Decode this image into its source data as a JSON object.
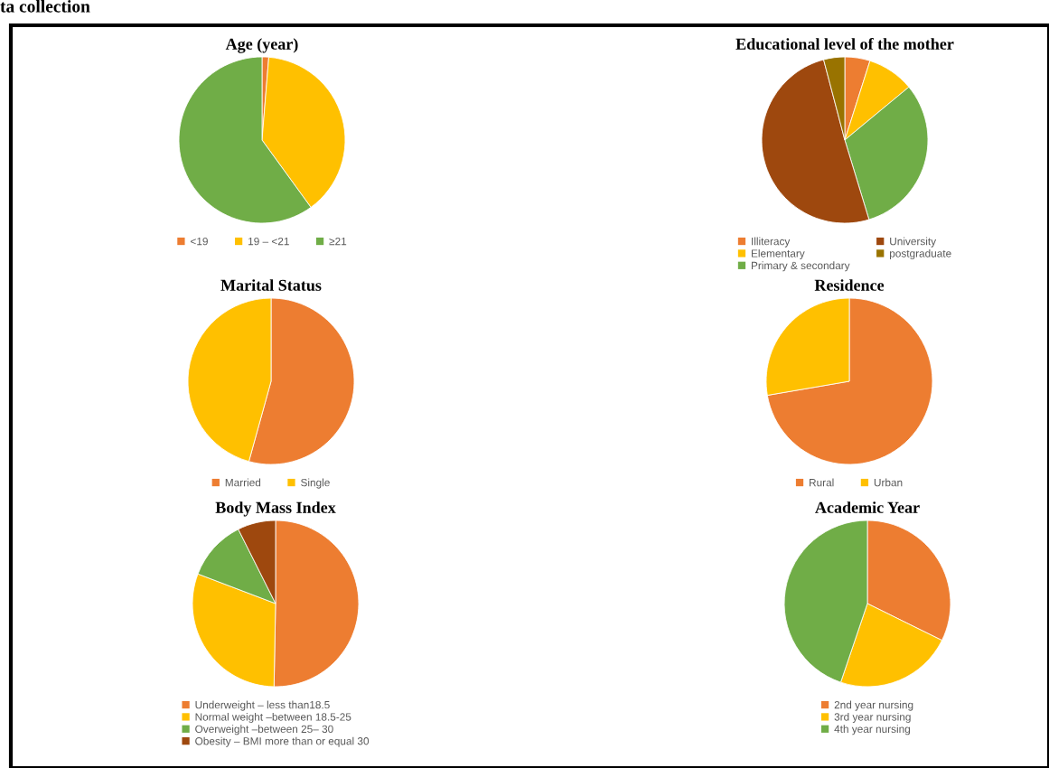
{
  "chart_data": [
    {
      "type": "pie",
      "title": "Age (year)",
      "categories": [
        "<19",
        "19 – <21",
        "≥21"
      ],
      "values": [
        1.3,
        38.7,
        60
      ],
      "colors": [
        "#ed7d31",
        "#ffc000",
        "#70ad47"
      ],
      "legend": "bottom",
      "annotations": [
        "ta collection"
      ]
    },
    {
      "type": "pie",
      "title": "Educational level of the mother",
      "categories": [
        "Illiteracy",
        "Elementary",
        "Primary & secondary",
        "University",
        "postgraduate"
      ],
      "values": [
        4.9,
        9.1,
        31.3,
        50.6,
        4.1
      ],
      "colors": [
        "#ed7d31",
        "#ffc000",
        "#70ad47",
        "#9e480e",
        "#997300"
      ],
      "legend": "bottom"
    },
    {
      "type": "pie",
      "title": "Marital Status",
      "categories": [
        "Married",
        "Single"
      ],
      "values": [
        54.3,
        45.7
      ],
      "colors": [
        "#ed7d31",
        "#ffc000"
      ],
      "legend": "bottom"
    },
    {
      "type": "pie",
      "title": "Residence",
      "categories": [
        "Rural",
        "Urban"
      ],
      "values": [
        72.3,
        27.7
      ],
      "colors": [
        "#ed7d31",
        "#ffc000"
      ],
      "legend": "bottom"
    },
    {
      "type": "pie",
      "title": "Body Mass Index",
      "categories": [
        "Underweight – less than18.5",
        "Normal weight –between 18.5-25",
        "Overweight –between 25– 30",
        "Obesity – BMI more than or equal 30"
      ],
      "values": [
        50.3,
        30.5,
        11.8,
        7.4
      ],
      "colors": [
        "#ed7d31",
        "#ffc000",
        "#70ad47",
        "#9e480e"
      ],
      "legend": "bottom"
    },
    {
      "type": "pie",
      "title": "Academic Year",
      "categories": [
        "2nd year nursing",
        "3rd year nursing",
        "4th year nursing"
      ],
      "values": [
        32.3,
        22.9,
        44.8
      ],
      "colors": [
        "#ed7d31",
        "#ffc000",
        "#70ad47"
      ],
      "legend": "bottom"
    }
  ]
}
